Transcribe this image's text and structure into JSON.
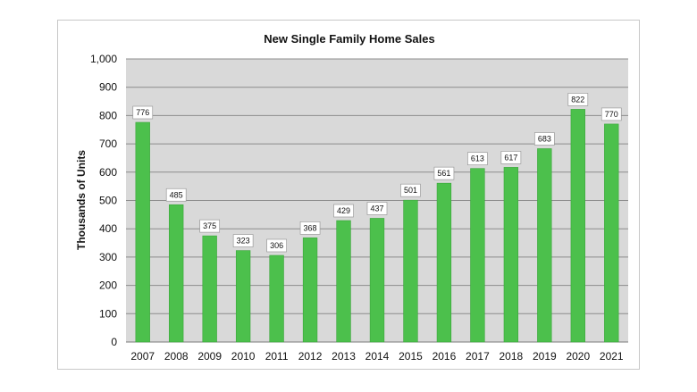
{
  "chart_data": {
    "type": "bar",
    "title": "New Single Family Home Sales",
    "xlabel": "",
    "ylabel": "Thousands of Units",
    "categories": [
      "2007",
      "2008",
      "2009",
      "2010",
      "2011",
      "2012",
      "2013",
      "2014",
      "2015",
      "2016",
      "2017",
      "2018",
      "2019",
      "2020",
      "2021"
    ],
    "values": [
      776,
      485,
      375,
      323,
      306,
      368,
      429,
      437,
      501,
      561,
      613,
      617,
      683,
      822,
      770
    ],
    "ylim": [
      0,
      1000
    ],
    "yticks": [
      "0",
      "100",
      "200",
      "300",
      "400",
      "500",
      "600",
      "700",
      "800",
      "900",
      "1,000"
    ],
    "grid": true,
    "legend": "none",
    "colors": {
      "bar": "#4cc04c",
      "bar_edge": "#3aa63a",
      "plot_bg": "#d9d9d9",
      "grid": "#8c8c8c"
    }
  }
}
